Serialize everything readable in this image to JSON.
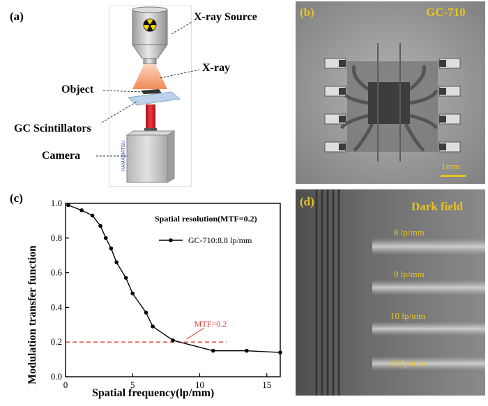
{
  "panel_a": {
    "label": "(a)",
    "source_label": "X-ray Source",
    "xray_label": "X-ray",
    "object_label": "Object",
    "scintillator_label": "GC Scintillators",
    "camera_label": "Camera",
    "camera_brand": "HAMAMATSU"
  },
  "panel_b": {
    "label": "(b)",
    "title": "GC-710",
    "scale_bar_label": "1mm"
  },
  "panel_c": {
    "label": "(c)"
  },
  "panel_d": {
    "label": "(d)",
    "title": "Dark field",
    "pattern_labels": [
      "8 lp/mm",
      "9 lp/mm",
      "10 lp/mm",
      "12 lp/mm"
    ]
  },
  "colors": {
    "label_yellow": "#e8c51e",
    "threshold_red": "#e23b2e",
    "beam_orange": "#f5a57a",
    "scintillator_blue": "#bcd3ea",
    "camera_grey": "#c9c9c9"
  },
  "chart_data": {
    "type": "line",
    "xlabel": "Spatial frequency(lp/mm)",
    "ylabel": "Modulation transfer function",
    "xlim": [
      0,
      16
    ],
    "ylim": [
      0,
      1.0
    ],
    "xticks": [
      0,
      5,
      10,
      15
    ],
    "yticks": [
      0.0,
      0.2,
      0.4,
      0.6,
      0.8,
      1.0
    ],
    "grid": false,
    "legend_title": "Spatial resolution(MTF=0.2)",
    "legend_position": "top-right",
    "series": [
      {
        "name": "GC-710:8.8 lp/mm",
        "color": "#000000",
        "x": [
          0.2,
          1.2,
          2.0,
          2.6,
          3.0,
          3.4,
          3.8,
          4.5,
          5.0,
          6.0,
          6.5,
          8.0,
          11.0,
          13.5,
          16.0
        ],
        "y": [
          0.99,
          0.96,
          0.93,
          0.87,
          0.8,
          0.74,
          0.66,
          0.57,
          0.48,
          0.37,
          0.29,
          0.21,
          0.15,
          0.15,
          0.14
        ]
      }
    ],
    "threshold": {
      "y": 0.2,
      "label": "MTF=0.2",
      "x_end": 12
    }
  }
}
